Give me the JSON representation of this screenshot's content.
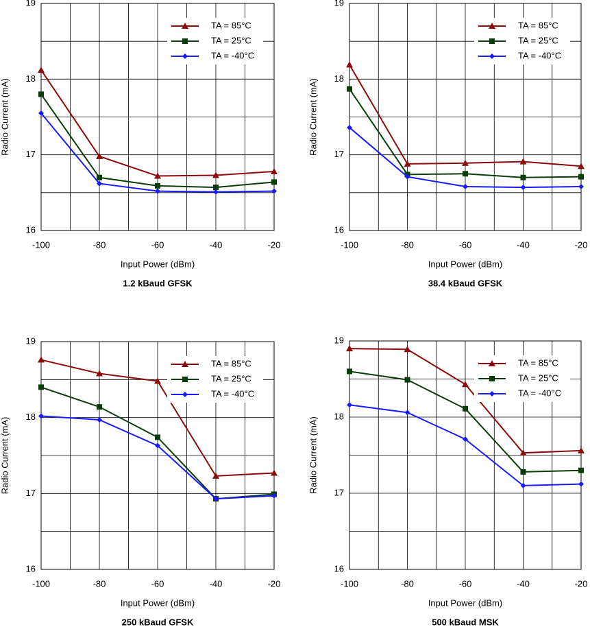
{
  "chart_data": [
    {
      "type": "line",
      "title": "1.2 kBaud GFSK",
      "xlabel": "Input Power (dBm)",
      "ylabel": "Radio Current (mA)",
      "x": [
        -100,
        -80,
        -60,
        -40,
        -20
      ],
      "xlim": [
        -100,
        -20
      ],
      "xticks": [
        -100,
        -80,
        -60,
        -40,
        -20
      ],
      "ylim": [
        16,
        19
      ],
      "yticks": [
        16,
        17,
        18,
        19
      ],
      "grid": true,
      "legend": "upper right",
      "series": [
        {
          "name": "TA = 85°C",
          "color": "#8b0a0a",
          "marker": "triangle",
          "values": [
            18.12,
            16.98,
            16.72,
            16.73,
            16.78
          ]
        },
        {
          "name": "TA = 25°C",
          "color": "#0a3d0a",
          "marker": "square",
          "values": [
            17.8,
            16.7,
            16.59,
            16.57,
            16.64
          ]
        },
        {
          "name": "TA = -40°C",
          "color": "#1a1aff",
          "marker": "diamond",
          "values": [
            17.55,
            16.62,
            16.52,
            16.51,
            16.52
          ]
        }
      ]
    },
    {
      "type": "line",
      "title": "38.4 kBaud GFSK",
      "xlabel": "Input Power (dBm)",
      "ylabel": "Radio Current (mA)",
      "x": [
        -100,
        -80,
        -60,
        -40,
        -20
      ],
      "xlim": [
        -100,
        -20
      ],
      "xticks": [
        -100,
        -80,
        -60,
        -40,
        -20
      ],
      "ylim": [
        16,
        19
      ],
      "yticks": [
        16,
        17,
        18,
        19
      ],
      "grid": true,
      "legend": "upper right",
      "series": [
        {
          "name": "TA = 85°C",
          "color": "#8b0a0a",
          "marker": "triangle",
          "values": [
            18.19,
            16.88,
            16.89,
            16.91,
            16.85
          ]
        },
        {
          "name": "TA = 25°C",
          "color": "#0a3d0a",
          "marker": "square",
          "values": [
            17.87,
            16.74,
            16.75,
            16.7,
            16.71
          ]
        },
        {
          "name": "TA = -40°C",
          "color": "#1a1aff",
          "marker": "diamond",
          "values": [
            17.36,
            16.71,
            16.58,
            16.57,
            16.58
          ]
        }
      ]
    },
    {
      "type": "line",
      "title": "250 kBaud GFSK",
      "xlabel": "Input Power (dBm)",
      "ylabel": "Radio Current (mA)",
      "x": [
        -100,
        -80,
        -60,
        -40,
        -20
      ],
      "xlim": [
        -100,
        -20
      ],
      "xticks": [
        -100,
        -80,
        -60,
        -40,
        -20
      ],
      "ylim": [
        16,
        19
      ],
      "yticks": [
        16,
        17,
        18,
        19
      ],
      "grid": true,
      "legend": "upper right",
      "series": [
        {
          "name": "TA = 85°C",
          "color": "#8b0a0a",
          "marker": "triangle",
          "values": [
            18.76,
            18.58,
            18.48,
            17.23,
            17.27
          ]
        },
        {
          "name": "TA = 25°C",
          "color": "#0a3d0a",
          "marker": "square",
          "values": [
            18.4,
            18.14,
            17.74,
            16.93,
            16.99
          ]
        },
        {
          "name": "TA = -40°C",
          "color": "#1a1aff",
          "marker": "diamond",
          "values": [
            18.02,
            17.97,
            17.63,
            16.93,
            16.97
          ]
        }
      ]
    },
    {
      "type": "line",
      "title": "500 kBaud MSK",
      "xlabel": "Input Power (dBm)",
      "ylabel": "Radio Current (mA)",
      "x": [
        -100,
        -80,
        -60,
        -40,
        -20
      ],
      "xlim": [
        -100,
        -20
      ],
      "xticks": [
        -100,
        -80,
        -60,
        -40,
        -20
      ],
      "ylim": [
        16,
        19
      ],
      "yticks": [
        16,
        17,
        18,
        19
      ],
      "grid": true,
      "legend": "upper right",
      "series": [
        {
          "name": "TA = 85°C",
          "color": "#8b0a0a",
          "marker": "triangle",
          "values": [
            18.9,
            18.89,
            18.43,
            17.53,
            17.56
          ]
        },
        {
          "name": "TA = 25°C",
          "color": "#0a3d0a",
          "marker": "square",
          "values": [
            18.6,
            18.49,
            18.11,
            17.28,
            17.3
          ]
        },
        {
          "name": "TA = -40°C",
          "color": "#1a1aff",
          "marker": "diamond",
          "values": [
            18.16,
            18.06,
            17.71,
            17.1,
            17.12
          ]
        }
      ]
    }
  ]
}
